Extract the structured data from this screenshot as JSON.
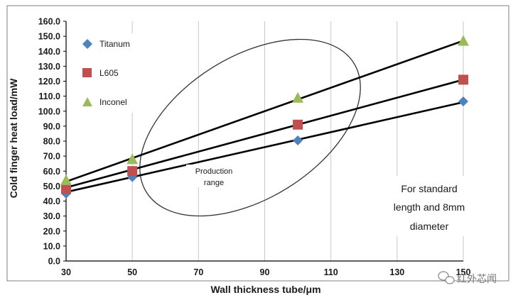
{
  "chart_data": {
    "type": "scatter",
    "title": "",
    "xlabel": "Wall thickness tube/μm",
    "ylabel": "Cold finger heat load/mW",
    "xlim": [
      30,
      150
    ],
    "ylim": [
      0,
      160
    ],
    "x_ticks": [
      "30",
      "50",
      "70",
      "90",
      "110",
      "130",
      "150"
    ],
    "y_ticks": [
      "0.0",
      "10.0",
      "20.0",
      "30.0",
      "40.0",
      "50.0",
      "60.0",
      "70.0",
      "80.0",
      "90.0",
      "100.0",
      "110.0",
      "120.0",
      "130.0",
      "140.0",
      "150.0",
      "160.0"
    ],
    "grid": "vertical",
    "legend_position": "top-left",
    "series": [
      {
        "name": "Titanum",
        "marker": "diamond",
        "color": "#4f81bd",
        "x": [
          30,
          50,
          100,
          150
        ],
        "y": [
          45,
          56,
          80.5,
          106.5
        ],
        "trendline": [
          [
            30,
            46
          ],
          [
            150,
            106
          ]
        ]
      },
      {
        "name": "L605",
        "marker": "square",
        "color": "#c0504d",
        "x": [
          30,
          50,
          100,
          150
        ],
        "y": [
          48,
          60,
          91,
          121
        ],
        "trendline": [
          [
            30,
            49
          ],
          [
            150,
            121
          ]
        ]
      },
      {
        "name": "Inconel",
        "marker": "triangle",
        "color": "#9bbb59",
        "x": [
          30,
          50,
          100,
          150
        ],
        "y": [
          54,
          68,
          109,
          147
        ],
        "trendline": [
          [
            30,
            53
          ],
          [
            150,
            147
          ]
        ]
      }
    ],
    "annotations": {
      "ellipse_label": [
        "Production",
        "range"
      ],
      "note": [
        "For standard",
        "length and 8mm",
        "diameter"
      ]
    }
  },
  "watermark": {
    "text": "红外芯闻",
    "icon": "wechat-icon"
  },
  "colors": {
    "line": "#000000",
    "grid": "#c8c8c8",
    "border": "#7f7f7f"
  }
}
